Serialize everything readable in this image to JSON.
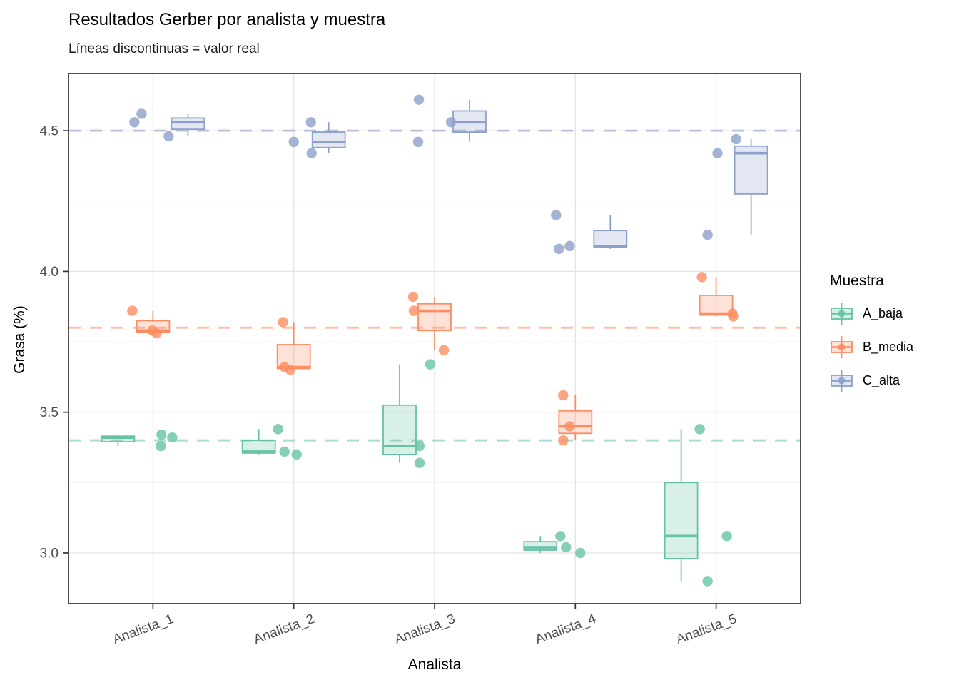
{
  "title": "Resultados Gerber por analista y muestra",
  "subtitle": "Líneas discontinuas = valor real",
  "axes": {
    "x_label": "Analista",
    "y_label": "Grasa (%)",
    "y_tick_labels": [
      "3.0",
      "3.5",
      "4.0",
      "4.5"
    ]
  },
  "legend": {
    "title": "Muestra"
  },
  "chart_data": {
    "type": "boxplot",
    "note": "grouped dodged boxplots (n=3 points each) with jittered points; dashed horizontal lines mark true values",
    "categories": [
      "Analista_1",
      "Analista_2",
      "Analista_3",
      "Analista_4",
      "Analista_5"
    ],
    "xlabel": "Analista",
    "ylabel": "Grasa (%)",
    "ylim": [
      2.82,
      4.703
    ],
    "y_major_ticks": [
      3.0,
      3.5,
      4.0,
      4.5
    ],
    "y_minor_gridlines": [
      3.25,
      3.75,
      4.25
    ],
    "grid": true,
    "legend_position": "right",
    "series": [
      {
        "name": "A_baja",
        "color": "#66C2A5",
        "true_value": 3.4,
        "boxes": [
          {
            "min": 3.38,
            "q1": 3.395,
            "median": 3.41,
            "q3": 3.415,
            "max": 3.42
          },
          {
            "min": 3.35,
            "q1": 3.355,
            "median": 3.36,
            "q3": 3.4,
            "max": 3.44
          },
          {
            "min": 3.32,
            "q1": 3.35,
            "median": 3.38,
            "q3": 3.525,
            "max": 3.67
          },
          {
            "min": 3.0,
            "q1": 3.01,
            "median": 3.02,
            "q3": 3.04,
            "max": 3.06
          },
          {
            "min": 2.9,
            "q1": 2.98,
            "median": 3.06,
            "q3": 3.25,
            "max": 3.44
          }
        ],
        "points": [
          [
            {
              "v": 3.42,
              "dx": 12
            },
            {
              "v": 3.41,
              "dx": 27
            },
            {
              "v": 3.38,
              "dx": 11
            }
          ],
          [
            {
              "v": 3.44,
              "dx": -22
            },
            {
              "v": 3.36,
              "dx": -13
            },
            {
              "v": 3.35,
              "dx": 4
            }
          ],
          [
            {
              "v": 3.67,
              "dx": -6
            },
            {
              "v": 3.38,
              "dx": -21
            },
            {
              "v": 3.32,
              "dx": -21
            }
          ],
          [
            {
              "v": 3.06,
              "dx": -21
            },
            {
              "v": 3.02,
              "dx": -13
            },
            {
              "v": 3.0,
              "dx": 7
            }
          ],
          [
            {
              "v": 3.44,
              "dx": -23
            },
            {
              "v": 3.06,
              "dx": 15
            },
            {
              "v": 2.9,
              "dx": -12
            }
          ]
        ]
      },
      {
        "name": "B_media",
        "color": "#FC8D62",
        "true_value": 3.8,
        "boxes": [
          {
            "min": 3.78,
            "q1": 3.785,
            "median": 3.79,
            "q3": 3.825,
            "max": 3.86
          },
          {
            "min": 3.65,
            "q1": 3.655,
            "median": 3.66,
            "q3": 3.74,
            "max": 3.82
          },
          {
            "min": 3.72,
            "q1": 3.79,
            "median": 3.86,
            "q3": 3.885,
            "max": 3.91
          },
          {
            "min": 3.4,
            "q1": 3.425,
            "median": 3.45,
            "q3": 3.505,
            "max": 3.56
          },
          {
            "min": 3.84,
            "q1": 3.845,
            "median": 3.85,
            "q3": 3.915,
            "max": 3.98
          }
        ],
        "points": [
          [
            {
              "v": 3.86,
              "dx": -29
            },
            {
              "v": 3.79,
              "dx": -1
            },
            {
              "v": 3.78,
              "dx": 5
            }
          ],
          [
            {
              "v": 3.82,
              "dx": -15
            },
            {
              "v": 3.66,
              "dx": -13
            },
            {
              "v": 3.65,
              "dx": -5
            }
          ],
          [
            {
              "v": 3.91,
              "dx": -30
            },
            {
              "v": 3.86,
              "dx": -29
            },
            {
              "v": 3.72,
              "dx": 13
            }
          ],
          [
            {
              "v": 3.56,
              "dx": -17
            },
            {
              "v": 3.45,
              "dx": -8
            },
            {
              "v": 3.4,
              "dx": -17
            }
          ],
          [
            {
              "v": 3.98,
              "dx": -20
            },
            {
              "v": 3.85,
              "dx": 23
            },
            {
              "v": 3.84,
              "dx": 24
            }
          ]
        ]
      },
      {
        "name": "C_alta",
        "color": "#8DA0CB",
        "true_value": 4.5,
        "boxes": [
          {
            "min": 4.48,
            "q1": 4.505,
            "median": 4.53,
            "q3": 4.545,
            "max": 4.56
          },
          {
            "min": 4.42,
            "q1": 4.44,
            "median": 4.46,
            "q3": 4.495,
            "max": 4.53
          },
          {
            "min": 4.46,
            "q1": 4.495,
            "median": 4.53,
            "q3": 4.57,
            "max": 4.61
          },
          {
            "min": 4.08,
            "q1": 4.085,
            "median": 4.09,
            "q3": 4.145,
            "max": 4.2
          },
          {
            "min": 4.13,
            "q1": 4.275,
            "median": 4.42,
            "q3": 4.445,
            "max": 4.47
          }
        ],
        "points": [
          [
            {
              "v": 4.56,
              "dx": -16
            },
            {
              "v": 4.53,
              "dx": -26
            },
            {
              "v": 4.48,
              "dx": 22
            }
          ],
          [
            {
              "v": 4.53,
              "dx": 24
            },
            {
              "v": 4.46,
              "dx": 0
            },
            {
              "v": 4.42,
              "dx": 25
            }
          ],
          [
            {
              "v": 4.61,
              "dx": -22
            },
            {
              "v": 4.53,
              "dx": 23
            },
            {
              "v": 4.46,
              "dx": -23
            }
          ],
          [
            {
              "v": 4.2,
              "dx": -27
            },
            {
              "v": 4.09,
              "dx": -8
            },
            {
              "v": 4.08,
              "dx": -23
            }
          ],
          [
            {
              "v": 4.47,
              "dx": 28
            },
            {
              "v": 4.42,
              "dx": 2
            },
            {
              "v": 4.13,
              "dx": -12
            }
          ]
        ]
      }
    ]
  },
  "style_colors": {
    "panel_border": "#333333",
    "major_grid": "#e4e4e4",
    "minor_grid": "#f2f2f2",
    "tick_label": "#4d4d4d"
  }
}
